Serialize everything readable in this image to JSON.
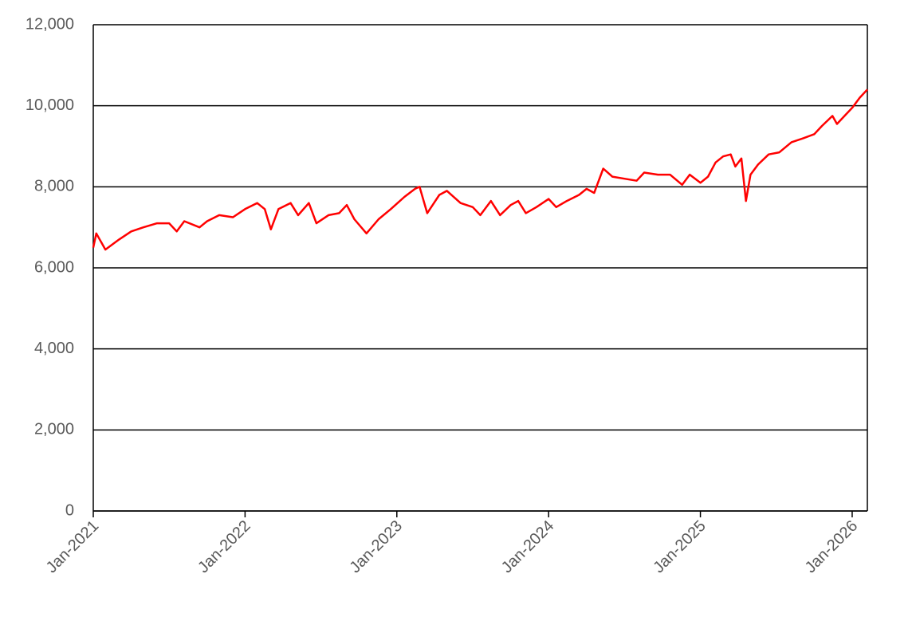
{
  "chart_data": {
    "type": "line",
    "x": [
      2021.0,
      2021.02,
      2021.08,
      2021.17,
      2021.25,
      2021.33,
      2021.42,
      2021.5,
      2021.55,
      2021.6,
      2021.7,
      2021.75,
      2021.83,
      2021.92,
      2022.0,
      2022.08,
      2022.13,
      2022.17,
      2022.22,
      2022.3,
      2022.35,
      2022.42,
      2022.47,
      2022.55,
      2022.62,
      2022.67,
      2022.72,
      2022.8,
      2022.88,
      2022.96,
      2023.05,
      2023.12,
      2023.15,
      2023.2,
      2023.28,
      2023.33,
      2023.42,
      2023.5,
      2023.55,
      2023.62,
      2023.68,
      2023.75,
      2023.8,
      2023.85,
      2023.92,
      2024.0,
      2024.05,
      2024.12,
      2024.2,
      2024.25,
      2024.3,
      2024.36,
      2024.42,
      2024.5,
      2024.58,
      2024.63,
      2024.72,
      2024.8,
      2024.88,
      2024.93,
      2025.0,
      2025.05,
      2025.1,
      2025.15,
      2025.2,
      2025.23,
      2025.27,
      2025.3,
      2025.33,
      2025.38,
      2025.45,
      2025.52,
      2025.6,
      2025.68,
      2025.75,
      2025.8,
      2025.87,
      2025.9,
      2025.95,
      2026.0,
      2026.05,
      2026.1
    ],
    "values": [
      6500,
      6850,
      6450,
      6700,
      6900,
      7000,
      7100,
      7100,
      6900,
      7150,
      7000,
      7150,
      7300,
      7250,
      7450,
      7600,
      7450,
      6950,
      7450,
      7600,
      7300,
      7600,
      7100,
      7300,
      7350,
      7550,
      7200,
      6850,
      7200,
      7450,
      7750,
      7950,
      8000,
      7350,
      7800,
      7900,
      7600,
      7500,
      7300,
      7650,
      7300,
      7550,
      7650,
      7350,
      7500,
      7700,
      7500,
      7650,
      7800,
      7950,
      7850,
      8450,
      8250,
      8200,
      8150,
      8350,
      8300,
      8300,
      8050,
      8300,
      8100,
      8250,
      8600,
      8750,
      8800,
      8500,
      8700,
      7650,
      8300,
      8550,
      8800,
      8850,
      9100,
      9200,
      9300,
      9500,
      9750,
      9550,
      9750,
      9950,
      10200,
      10400
    ],
    "color": "#ff0000",
    "xlim": [
      2021,
      2026.1
    ],
    "xticks": [
      {
        "value": 2021,
        "label": "Jan-2021"
      },
      {
        "value": 2022,
        "label": "Jan-2022"
      },
      {
        "value": 2023,
        "label": "Jan-2023"
      },
      {
        "value": 2024,
        "label": "Jan-2024"
      },
      {
        "value": 2025,
        "label": "Jan-2025"
      },
      {
        "value": 2026,
        "label": "Jan-2026"
      }
    ],
    "ylim": [
      0,
      12000
    ],
    "yticks": [
      0,
      {
        "value": 2000,
        "label": "2,000"
      },
      {
        "value": 4000,
        "label": "4,000"
      },
      {
        "value": 6000,
        "label": "6,000"
      },
      {
        "value": 8000,
        "label": "8,000"
      },
      {
        "value": 10000,
        "label": "10,000"
      },
      {
        "value": 12000,
        "label": "12,000"
      }
    ],
    "grid": true
  }
}
